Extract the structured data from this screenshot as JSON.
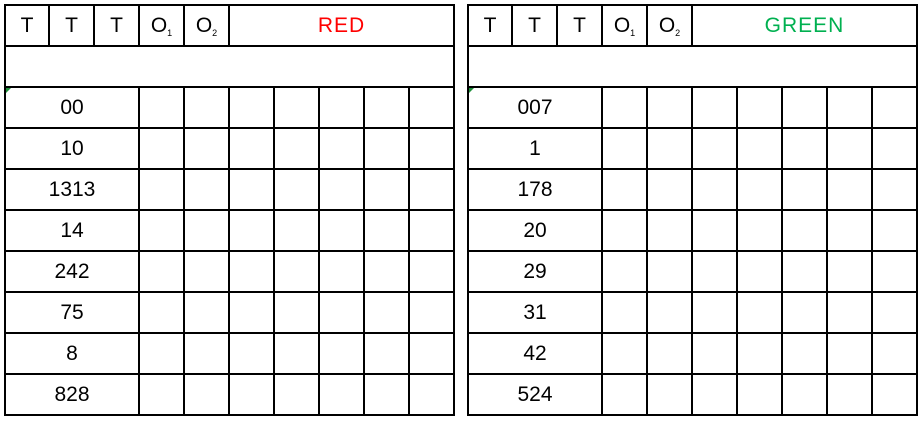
{
  "panels": [
    {
      "headers": [
        "T",
        "T",
        "T",
        "O",
        "O"
      ],
      "subscripts": [
        "1",
        "2"
      ],
      "title": "RED",
      "title_color": "#ff0000",
      "values": [
        "00",
        "10",
        "1313",
        "14",
        "242",
        "75",
        "8",
        "828"
      ]
    },
    {
      "headers": [
        "T",
        "T",
        "T",
        "O",
        "O"
      ],
      "subscripts": [
        "1",
        "2"
      ],
      "title": "GREEN",
      "title_color": "#00b050",
      "values": [
        "007",
        "1",
        "178",
        "20",
        "29",
        "31",
        "42",
        "524"
      ]
    }
  ]
}
